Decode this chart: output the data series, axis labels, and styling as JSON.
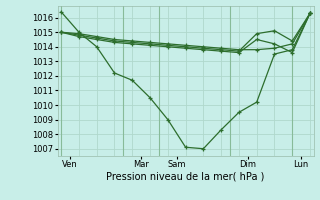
{
  "background_color": "#c8eee8",
  "grid_color": "#b0d8cc",
  "line_color": "#2d6e2d",
  "title": "Pression niveau de la mer( hPa )",
  "ylim": [
    1006.5,
    1016.8
  ],
  "yticks": [
    1007,
    1008,
    1009,
    1010,
    1011,
    1012,
    1013,
    1014,
    1015,
    1016
  ],
  "xlim": [
    -0.2,
    14.2
  ],
  "xtick_labels": [
    "Ven",
    "Mar",
    "Sam",
    "Dim",
    "Lun"
  ],
  "xtick_positions": [
    0.5,
    4.5,
    6.5,
    10.5,
    13.5
  ],
  "vline_positions": [
    0,
    3.5,
    5.5,
    9.5,
    13.0
  ],
  "series": [
    {
      "x": [
        0,
        1,
        2,
        3,
        4,
        5,
        6,
        7,
        8,
        9,
        10,
        11,
        12,
        13,
        14
      ],
      "y": [
        1016.4,
        1015.0,
        1014.0,
        1012.2,
        1011.7,
        1010.5,
        1009.0,
        1007.1,
        1007.0,
        1008.3,
        1009.5,
        1010.2,
        1013.5,
        1013.8,
        1016.3
      ]
    },
    {
      "x": [
        0,
        1,
        2,
        3,
        4,
        5,
        6,
        7,
        8,
        9,
        10,
        11,
        12,
        13,
        14
      ],
      "y": [
        1015.0,
        1014.9,
        1014.7,
        1014.5,
        1014.4,
        1014.3,
        1014.2,
        1014.1,
        1014.0,
        1013.9,
        1013.8,
        1013.8,
        1013.9,
        1014.2,
        1016.3
      ]
    },
    {
      "x": [
        0,
        1,
        2,
        3,
        4,
        5,
        6,
        7,
        8,
        9,
        10,
        11,
        12,
        13,
        14
      ],
      "y": [
        1015.0,
        1014.8,
        1014.6,
        1014.4,
        1014.3,
        1014.2,
        1014.1,
        1014.0,
        1013.9,
        1013.8,
        1013.7,
        1014.9,
        1015.1,
        1014.4,
        1016.3
      ]
    },
    {
      "x": [
        0,
        1,
        2,
        3,
        4,
        5,
        6,
        7,
        8,
        9,
        10,
        11,
        12,
        13,
        14
      ],
      "y": [
        1015.0,
        1014.7,
        1014.5,
        1014.3,
        1014.2,
        1014.1,
        1014.0,
        1013.9,
        1013.8,
        1013.7,
        1013.6,
        1014.5,
        1014.2,
        1013.6,
        1016.3
      ]
    }
  ]
}
